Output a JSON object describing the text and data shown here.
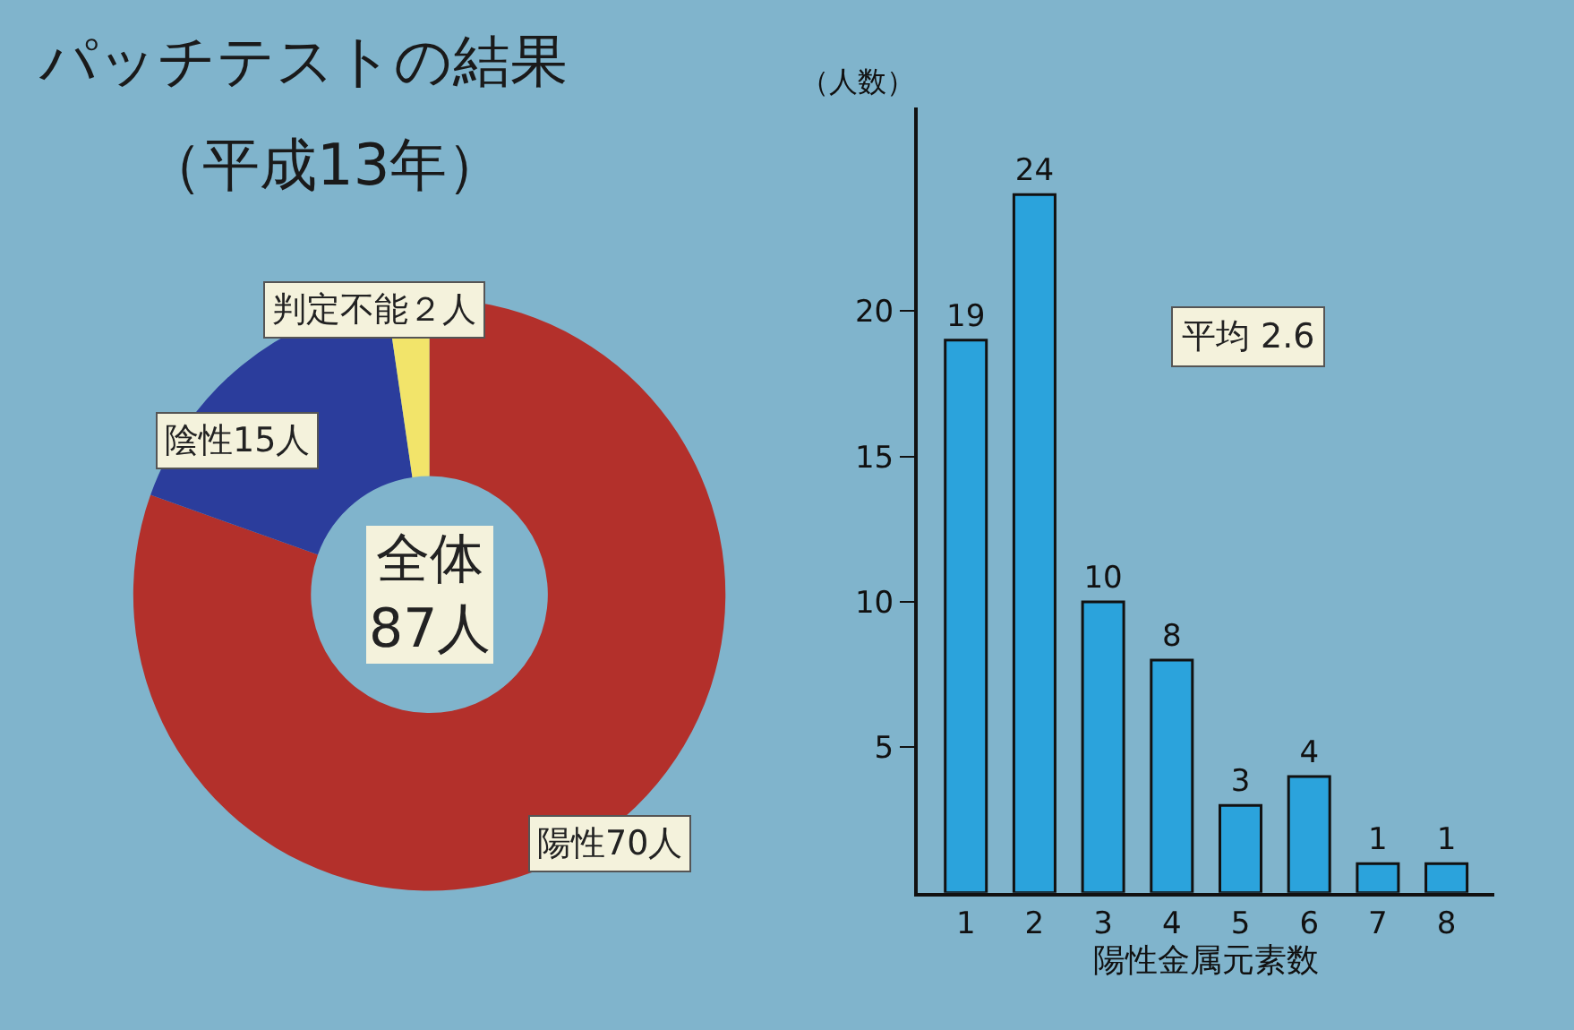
{
  "chart_data": [
    {
      "type": "donut",
      "title": "パッチテストの結果",
      "subtitle": "（平成13年）",
      "categories": [
        "陽性70人",
        "陰性15人",
        "判定不能２人"
      ],
      "values": [
        70,
        15,
        2
      ],
      "colors": [
        "#b3302b",
        "#2b3d9c",
        "#f2e46a"
      ],
      "annotations": [
        "全体\n87人"
      ]
    },
    {
      "type": "bar",
      "categories": [
        "1",
        "2",
        "3",
        "4",
        "5",
        "6",
        "7",
        "8"
      ],
      "values": [
        19,
        24,
        10,
        8,
        3,
        4,
        1,
        1
      ],
      "color": "#2ba3dc",
      "ylim": [
        0,
        27
      ],
      "yticks": [
        5,
        10,
        15,
        20
      ],
      "ylabel": "（人数）",
      "xlabel": "陽性金属元素数",
      "data_labels": true,
      "annotations": [
        "平均 2.6"
      ]
    }
  ]
}
